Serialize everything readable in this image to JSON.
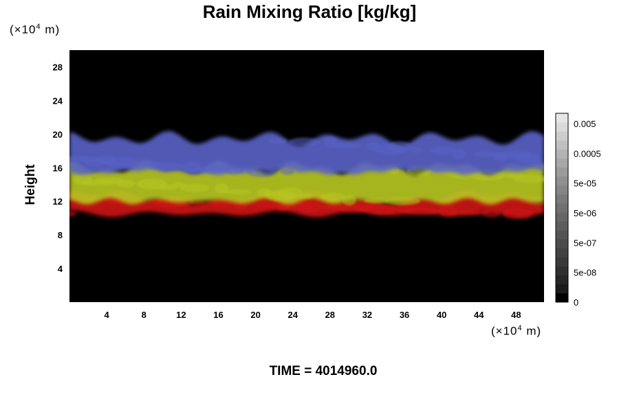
{
  "chart_data": {
    "type": "heatmap",
    "title": "Rain Mixing Ratio [kg/kg]",
    "ylabel": "Height",
    "y_unit": "10^4 m",
    "x_unit": "10^4 m",
    "xlim": [
      0,
      51
    ],
    "ylim": [
      0,
      30
    ],
    "x_ticks": [
      4,
      8,
      12,
      16,
      20,
      24,
      28,
      32,
      36,
      40,
      44,
      48
    ],
    "y_ticks": [
      4,
      8,
      12,
      16,
      20,
      24,
      28
    ],
    "colorbar": {
      "tick_labels": [
        "0.005",
        "0.0005",
        "5e-05",
        "5e-06",
        "5e-07",
        "5e-08",
        "0"
      ],
      "colors": [
        "#000000",
        "#1b1b1b",
        "#262626",
        "#303030",
        "#393939",
        "#424242",
        "#4b4b4b",
        "#545454",
        "#5d5d5d",
        "#666666",
        "#707070",
        "#7a7a7a",
        "#858585",
        "#909090",
        "#9b9b9b",
        "#a7a7a7",
        "#b3b3b3",
        "#c0c0c0",
        "#cdcdcd",
        "#dadada",
        "#e6e6e6"
      ]
    },
    "layers": [
      {
        "color": "#d01616",
        "y_range": [
          10.5,
          12.5
        ]
      },
      {
        "color": "#b8c820",
        "y_range": [
          12.0,
          16.0
        ]
      },
      {
        "color": "#5a64c8",
        "y_range": [
          15.5,
          19.5
        ]
      }
    ],
    "time_label": "TIME = 4014960.0"
  }
}
